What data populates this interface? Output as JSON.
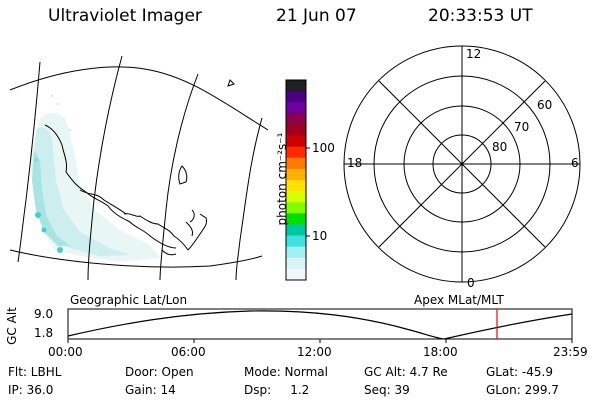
{
  "header": {
    "title": "Ultraviolet Imager",
    "date": "21 Jun 07",
    "time": "20:33:53 UT"
  },
  "colorbar": {
    "unit_label": "photon cm⁻²s⁻¹",
    "ticks": [
      "100",
      "10"
    ],
    "colors": [
      "#202020",
      "#4b0082",
      "#6a00a0",
      "#8b004b",
      "#a00020",
      "#d00000",
      "#ff2a00",
      "#ff7a00",
      "#ffb000",
      "#ffe000",
      "#d8ff00",
      "#80ff00",
      "#00e000",
      "#00c8a0",
      "#40e0e0",
      "#a0f0f0",
      "#d8f4f4",
      "#f0f8f8"
    ]
  },
  "polar": {
    "mlt_labels": [
      "12",
      "18",
      "6",
      "0"
    ],
    "lat_labels": [
      "60",
      "70",
      "80"
    ]
  },
  "labels": {
    "left_panel": "Geographic Lat/Lon",
    "right_panel": "Apex MLat/MLT"
  },
  "altitude_plot": {
    "axis_title": "GC Alt",
    "y_ticks": [
      "9.0",
      "1.8"
    ],
    "x_ticks": [
      "00:00",
      "06:00",
      "12:00",
      "18:00",
      "23:59"
    ],
    "curve_color": "#000000",
    "marker_color": "#ff0000"
  },
  "status": {
    "row1": {
      "flt": "Flt: LBHL",
      "door": "Door: Open",
      "mode": "Mode: Normal",
      "gc_alt": "GC Alt: 4.7 Re",
      "glat": "GLat: -45.9"
    },
    "row2": {
      "ip": "IP: 36.0",
      "gain": "Gain: 14",
      "dsp": "Dsp:     1.2",
      "seq": "Seq: 39",
      "glon": "GLon: 299.7"
    }
  }
}
